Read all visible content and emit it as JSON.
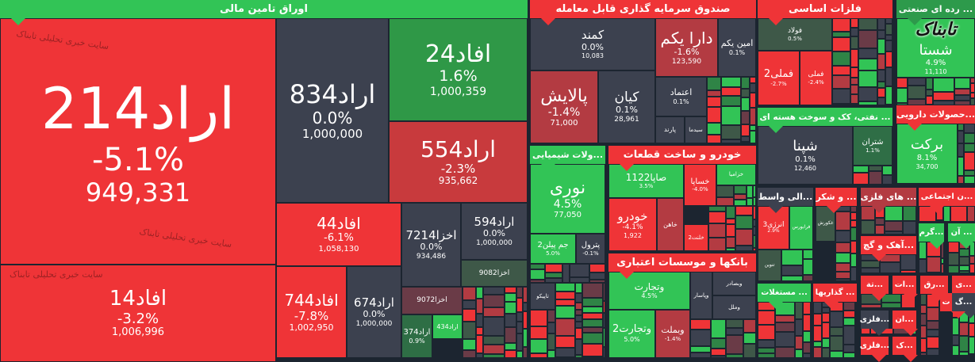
{
  "sectors": {
    "bonds": "اوراق تامین مالی",
    "etf": "صندوق سرمایه گذاری قابل معامله",
    "chem": "...ولات شیمیایی",
    "auto": "خودرو و ساخت قطعات",
    "banks": "بانکها و موسسات اعتباری",
    "metals": "فلزات اساسی",
    "holding": "... رده ای صنعتی",
    "oil": "... نفتی، کک و سوخت هسته ای",
    "pharma": "...حصولات دارویی",
    "inter": "...الی واسط",
    "sugar": "... و شکر",
    "metalore": "... های فلزی",
    "social": "...ن اجتماعی",
    "lime": "...آهک و گچ",
    "garm": "...گرم",
    "an": "... آن",
    "realestate": "... مستغلات",
    "invest": "... گذاریها",
    "s1": "...تة",
    "s2": "...ات",
    "s3": "...رق",
    "s4": "...ی",
    "s5": "...فلزی",
    "s6": "...ان",
    "s7": "...فلزی",
    "s8": "...ک",
    "s9": "...گ",
    "s10": "ت"
  },
  "tiles": {
    "arad214": {
      "name": "اراد214",
      "pct": "-5.1%",
      "value": "949,331"
    },
    "afad14": {
      "name": "افاد14",
      "pct": "-3.2%",
      "value": "1,006,996"
    },
    "arad834": {
      "name": "اراد834",
      "pct": "0.0%",
      "value": "1,000,000"
    },
    "afad24": {
      "name": "افاد24",
      "pct": "1.6%",
      "value": "1,000,359"
    },
    "arad554": {
      "name": "اراد554",
      "pct": "-2.3%",
      "value": "935,662"
    },
    "afad44": {
      "name": "افاد44",
      "pct": "-6.1%",
      "value": "1,058,130"
    },
    "afad744": {
      "name": "افاد744",
      "pct": "-7.8%",
      "value": "1,002,950"
    },
    "arad674": {
      "name": "اراد674",
      "pct": "0.0%",
      "value": "1,000,000"
    },
    "akhza7214": {
      "name": "اخزا7214",
      "pct": "0.0%",
      "value": "934,486"
    },
    "arad594": {
      "name": "اراد594",
      "pct": "0.0%",
      "value": "1,000,000"
    },
    "akhza9082": {
      "name": "اخزا9082"
    },
    "akhza9072": {
      "name": "اخزا9072"
    },
    "arad374": {
      "name": "اراد374",
      "pct": "0.9%"
    },
    "arad434": {
      "name": "اراد434"
    },
    "kamand": {
      "name": "کمند",
      "pct": "0.0%",
      "value": "10,083"
    },
    "darayekom": {
      "name": "دارا یکم",
      "pct": "-1.6%",
      "value": "123,590"
    },
    "aminyekom": {
      "name": "امین یکم",
      "pct": "0.1%"
    },
    "palayesh": {
      "name": "پالایش",
      "pct": "-1.4%",
      "value": "71,000"
    },
    "kian": {
      "name": "کیان",
      "pct": "0.1%",
      "value": "28,961"
    },
    "etemad": {
      "name": "اعتماد",
      "pct": "0.1%"
    },
    "parand": {
      "name": "پارند"
    },
    "sidma": {
      "name": "سیدما"
    },
    "nouri": {
      "name": "نوری",
      "pct": "4.5%",
      "value": "77,050"
    },
    "jampilan2": {
      "name": "جم پیلن2",
      "pct": "5.0%"
    },
    "petrol": {
      "name": "پترول",
      "pct": "-0.1%"
    },
    "tapiko": {
      "name": "تاپیکو"
    },
    "sapa1122": {
      "name": "صاپا1122",
      "pct": "3.5%"
    },
    "khodro": {
      "name": "خودرو",
      "pct": "-4.1%",
      "value": "1,922"
    },
    "khahan": {
      "name": "خاهن"
    },
    "khsapa": {
      "name": "خساپا",
      "pct": "-4.0%"
    },
    "khzamia": {
      "name": "خزامیا"
    },
    "khlant2": {
      "name": "خلنت2"
    },
    "vtejarat": {
      "name": "وتجارت",
      "pct": "4.5%"
    },
    "vtejarat2": {
      "name": "وتجارت2",
      "pct": "5.0%"
    },
    "vbemelat": {
      "name": "وبملت",
      "pct": "-1.4%"
    },
    "vpasar": {
      "name": "وپاسار"
    },
    "vbsader": {
      "name": "وبصادر"
    },
    "vmelal": {
      "name": "وملل"
    },
    "foolad": {
      "name": "فولاد",
      "pct": "0.5%"
    },
    "fameli2": {
      "name": "فملی2",
      "pct": "-2.7%"
    },
    "fameli": {
      "name": "فملی",
      "pct": "-2.4%"
    },
    "shasta": {
      "name": "شستا",
      "pct": "4.9%",
      "value": "11,110"
    },
    "shapna": {
      "name": "شپنا",
      "pct": "0.1%",
      "value": "12,460"
    },
    "shatran": {
      "name": "شتران",
      "pct": "1.1%"
    },
    "barekat": {
      "name": "برکت",
      "pct": "8.1%",
      "value": "34,700"
    },
    "energy3": {
      "name": "انرژی3",
      "pct": "2.9%"
    },
    "farabours": {
      "name": "فرابورس"
    },
    "tanvin": {
      "name": "تنوین"
    },
    "ghkourosh": {
      "name": "غکورش"
    }
  },
  "watermark": "سایت خبری تحلیلی تابناک",
  "logo": "تابناک"
}
